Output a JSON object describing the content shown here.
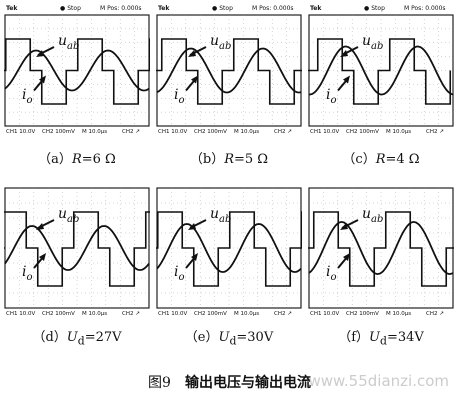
{
  "scope_header": {
    "brand": "Tek",
    "status": "Stop",
    "mpos": "M Pos: 0.000s"
  },
  "scope_footer": {
    "ch1": "CH1 10.0V",
    "ch2": "CH2 100mV",
    "m": "M 10.0μs",
    "ch2r": "CH2 ↗"
  },
  "labels": {
    "voltage": "u",
    "voltage_sub": "ab",
    "current": "i",
    "current_sub": "o"
  },
  "panels": [
    {
      "id": "a",
      "cap_prefix": "（a）",
      "var": "R",
      "var_sub": "",
      "value": "=6 Ω"
    },
    {
      "id": "b",
      "cap_prefix": "（b）",
      "var": "R",
      "var_sub": "",
      "value": "=5 Ω"
    },
    {
      "id": "c",
      "cap_prefix": "（c）",
      "var": "R",
      "var_sub": "",
      "value": "=4 Ω"
    },
    {
      "id": "d",
      "cap_prefix": "（d）",
      "var": "U",
      "var_sub": "d",
      "value": "=27V"
    },
    {
      "id": "e",
      "cap_prefix": "（e）",
      "var": "U",
      "var_sub": "d",
      "value": "=30V"
    },
    {
      "id": "f",
      "cap_prefix": "（f）",
      "var": "U",
      "var_sub": "d",
      "value": "=34V"
    }
  ],
  "figure_caption": {
    "number": "图9",
    "text": "输出电压与输出电流"
  },
  "watermark": "www.55dianzi.com"
}
